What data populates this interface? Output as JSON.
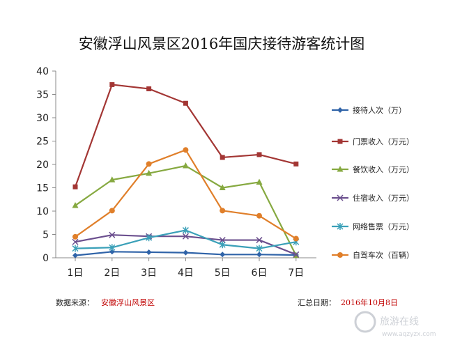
{
  "chart_data": {
    "type": "line",
    "title": "安徽浮山风景区2016年国庆接待游客统计图",
    "categories": [
      "1日",
      "2日",
      "3日",
      "4日",
      "5日",
      "6日",
      "7日"
    ],
    "ylim": [
      0,
      40
    ],
    "yticks": [
      0,
      5,
      10,
      15,
      20,
      25,
      30,
      35,
      40
    ],
    "grid": false,
    "legend_position": "right",
    "series": [
      {
        "name": "接待人次（万）",
        "color": "#2f63a8",
        "marker": "diamond",
        "values": [
          0.5,
          1.3,
          1.2,
          1.1,
          0.7,
          0.7,
          0.6
        ]
      },
      {
        "name": "门票收入（万元）",
        "color": "#a33634",
        "marker": "square",
        "values": [
          15.2,
          37.1,
          36.2,
          33.1,
          21.5,
          22.1,
          20.1
        ]
      },
      {
        "name": "餐饮收入（万元）",
        "color": "#86a940",
        "marker": "triangle",
        "values": [
          11.2,
          16.7,
          18.1,
          19.7,
          15.0,
          16.2,
          0.5
        ]
      },
      {
        "name": "住宿收入（万元）",
        "color": "#6b4f8e",
        "marker": "x",
        "values": [
          3.4,
          4.9,
          4.6,
          4.6,
          3.8,
          3.8,
          0.7
        ]
      },
      {
        "name": "网络售票（万元）",
        "color": "#3aa0b8",
        "marker": "star",
        "values": [
          2.0,
          2.2,
          4.3,
          5.9,
          2.8,
          2.0,
          3.4
        ]
      },
      {
        "name": "自驾车次（百辆）",
        "color": "#e07f2a",
        "marker": "circle",
        "values": [
          4.5,
          10.1,
          20.1,
          23.1,
          10.1,
          9.0,
          4.1
        ]
      }
    ]
  },
  "footer": {
    "source_label": "数据来源：",
    "source_value": "安徽浮山风景区",
    "date_label": "汇总日期：",
    "date_value": "2016年10月8日"
  },
  "watermark": {
    "text": "www.aqzyzx.com",
    "cn_text": "旅游在线"
  }
}
